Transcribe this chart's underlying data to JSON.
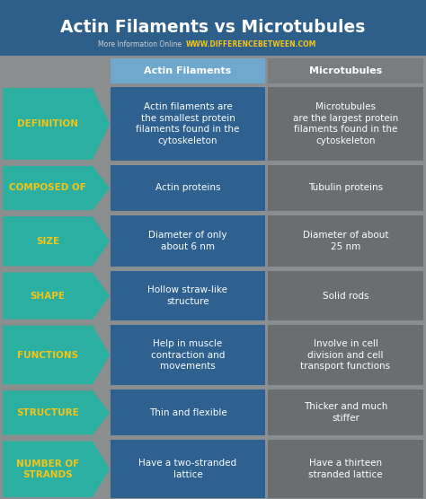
{
  "title": "Actin Filaments vs Microtubules",
  "subtitle_gray": "More Information Online",
  "subtitle_yellow": "WWW.DIFFERENCEBETWEEN.COM",
  "bg_color": "#8a8e8f",
  "header_bg": "#2e5f8a",
  "col1_header": "Actin Filaments",
  "col2_header": "Microtubules",
  "col1_header_bg": "#6fa8cc",
  "col2_header_bg": "#7a7d80",
  "arrow_color": "#2aafa0",
  "arrow_text_color": "#f5c518",
  "col1_bg": "#2e6090",
  "col2_bg": "#6b6e71",
  "cell_text_color": "#ffffff",
  "rows": [
    {
      "label": "DEFINITION",
      "col1": "Actin filaments are\nthe smallest protein\nfilaments found in the\ncytoskeleton",
      "col2": "Microtubules\nare the largest protein\nfilaments found in the\ncytoskeleton"
    },
    {
      "label": "COMPOSED OF",
      "col1": "Actin proteins",
      "col2": "Tubulin proteins"
    },
    {
      "label": "SIZE",
      "col1": "Diameter of only\nabout 6 nm",
      "col2": "Diameter of about\n25 nm"
    },
    {
      "label": "SHAPE",
      "col1": "Hollow straw-like\nstructure",
      "col2": "Solid rods"
    },
    {
      "label": "FUNCTIONS",
      "col1": "Help in muscle\ncontraction and\nmovements",
      "col2": "Involve in cell\ndivision and cell\ntransport functions"
    },
    {
      "label": "STRUCTURE",
      "col1": "Thin and flexible",
      "col2": "Thicker and much\nstiffer"
    },
    {
      "label": "NUMBER OF\nSTRANDS",
      "col1": "Have a two-stranded\nlattice",
      "col2": "Have a thirteen\nstranded lattice"
    }
  ]
}
